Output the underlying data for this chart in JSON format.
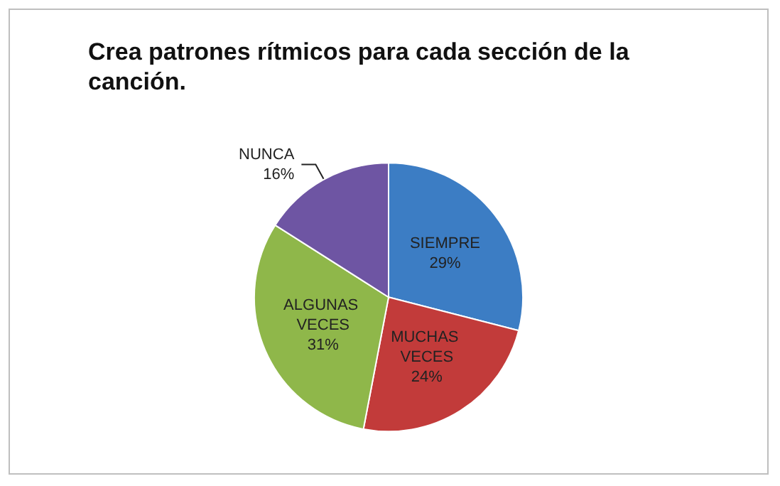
{
  "chart_data": {
    "type": "pie",
    "title": "Crea patrones rítmicos para cada sección de la canción.",
    "categories": [
      "SIEMPRE",
      "MUCHAS VECES",
      "ALGUNAS VECES",
      "NUNCA"
    ],
    "values": [
      29,
      24,
      31,
      16
    ],
    "colors": [
      "#3c7dc4",
      "#c23b3a",
      "#8fb74a",
      "#6e55a3"
    ],
    "value_labels": [
      "29%",
      "24%",
      "31%",
      "16%"
    ],
    "legend": false
  }
}
